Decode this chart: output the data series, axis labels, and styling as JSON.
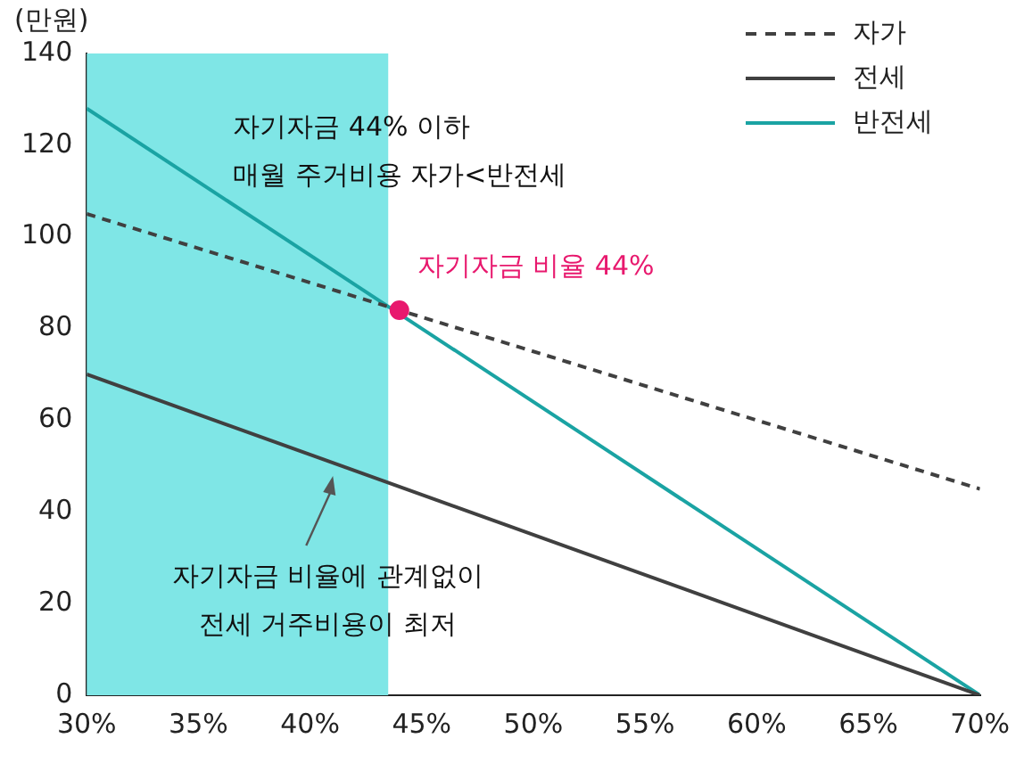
{
  "chart_data": {
    "type": "line",
    "ylabel": "(만원)",
    "x": [
      30,
      70
    ],
    "xlim": [
      30,
      70
    ],
    "xticks": [
      {
        "value": 30,
        "label": "30%"
      },
      {
        "value": 35,
        "label": "35%"
      },
      {
        "value": 40,
        "label": "40%"
      },
      {
        "value": 45,
        "label": "45%"
      },
      {
        "value": 50,
        "label": "50%"
      },
      {
        "value": 55,
        "label": "55%"
      },
      {
        "value": 60,
        "label": "60%"
      },
      {
        "value": 65,
        "label": "65%"
      },
      {
        "value": 70,
        "label": "70%"
      }
    ],
    "ylim": [
      0,
      140
    ],
    "yticks": [
      0,
      20,
      40,
      60,
      80,
      100,
      120,
      140
    ],
    "series": [
      {
        "name": "자가",
        "color": "#404040",
        "line_style": "dashed",
        "values": [
          105,
          45
        ]
      },
      {
        "name": "전세",
        "color": "#404040",
        "line_style": "solid",
        "values": [
          70,
          0
        ]
      },
      {
        "name": "반전세",
        "color": "#1aa3a3",
        "line_style": "solid",
        "values": [
          128,
          0
        ]
      },
      {
        "type": "scatter",
        "marker": "circle",
        "color": "#e8196e",
        "x": [
          44
        ],
        "values": [
          84
        ]
      }
    ],
    "bands": [
      {
        "axis": "x",
        "from": 30,
        "to": 43.5,
        "color": "#7fe6e6",
        "label": "자기자금 44% 이하\n매월 주거비용 자가<반전세"
      }
    ],
    "annotations": [
      {
        "text": "자기자금 비율 44%",
        "x": 44,
        "y": 84
      },
      "자기자금 비율에 관계없이\n전세 거주비용이 최저"
    ],
    "legend": "top right",
    "grid": false
  }
}
